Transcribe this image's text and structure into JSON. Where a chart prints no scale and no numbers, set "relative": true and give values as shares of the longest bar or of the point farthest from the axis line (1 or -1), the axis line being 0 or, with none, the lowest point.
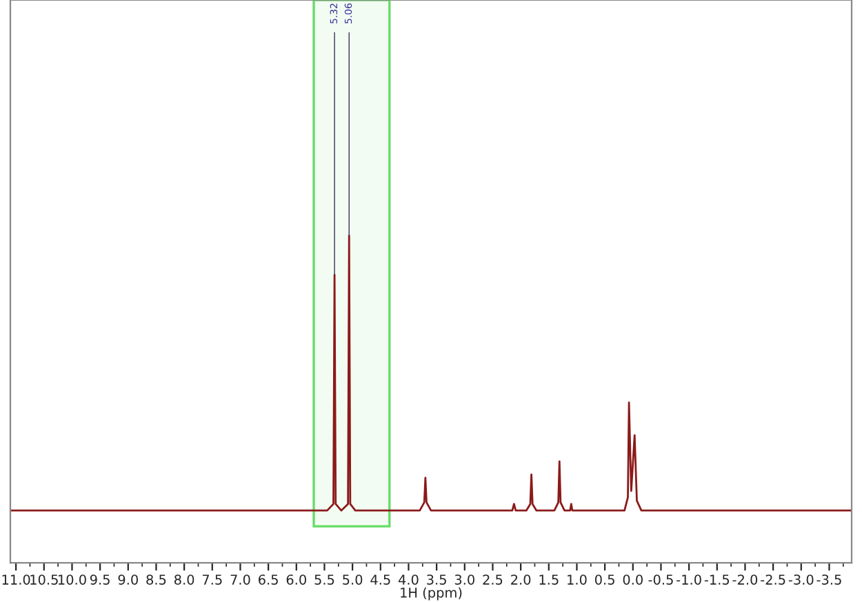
{
  "chart_data": {
    "type": "line",
    "relative": true,
    "xlabel": "1H (ppm)",
    "xlim": [
      11.1,
      -3.9
    ],
    "xticks": [
      {
        "value": 11,
        "label": "11.0"
      },
      10.5,
      {
        "value": 10,
        "label": "10.0"
      },
      9.5,
      {
        "value": 9,
        "label": "9.0"
      },
      8.5,
      {
        "value": 8,
        "label": "8.0"
      },
      7.5,
      {
        "value": 7,
        "label": "7.0"
      },
      6.5,
      {
        "value": 6,
        "label": "6.0"
      },
      5.5,
      {
        "value": 5,
        "label": "5.0"
      },
      4.5,
      {
        "value": 4,
        "label": "4.0"
      },
      3.5,
      {
        "value": 3,
        "label": "3.0"
      },
      2.5,
      {
        "value": 2,
        "label": "2.0"
      },
      1.5,
      {
        "value": 1,
        "label": "1.0"
      },
      0.5,
      {
        "value": 0,
        "label": "0.0"
      },
      -0.5,
      {
        "value": -1,
        "label": "-1.0"
      },
      -1.5,
      {
        "value": -2,
        "label": "-2.0"
      },
      -2.5,
      {
        "value": -3,
        "label": "-3.0"
      },
      -3.5
    ],
    "tick_labels": "x",
    "grid": false,
    "legend": false,
    "marker": "none",
    "line_style": "solid",
    "annotations": [
      {
        "text": "5.32",
        "x": 5.32,
        "y": 0.88
      },
      {
        "text": "5.06",
        "x": 5.06,
        "y": 1.0
      }
    ],
    "bands": [
      {
        "axis": "x",
        "from": 5.69,
        "to": 4.34,
        "label": null,
        "color": "#66dd66"
      }
    ],
    "series": [
      {
        "color": "#8b1a1a",
        "x": [
          11.1,
          5.45,
          5.34,
          5.32,
          5.3,
          5.2,
          5.08,
          5.06,
          5.04,
          4.95,
          3.8,
          3.72,
          3.7,
          3.68,
          3.6,
          2.15,
          2.12,
          2.09,
          1.9,
          1.83,
          1.81,
          1.79,
          1.72,
          1.4,
          1.33,
          1.31,
          1.29,
          1.22,
          1.12,
          1.1,
          1.08,
          0.15,
          0.09,
          0.07,
          0.03,
          -0.03,
          -0.07,
          -0.15,
          -3.9
        ],
        "values": [
          0.16,
          0.16,
          0.18,
          0.88,
          0.18,
          0.16,
          0.18,
          1.0,
          0.18,
          0.16,
          0.16,
          0.185,
          0.26,
          0.185,
          0.16,
          0.16,
          0.18,
          0.16,
          0.16,
          0.18,
          0.27,
          0.18,
          0.16,
          0.16,
          0.185,
          0.31,
          0.185,
          0.16,
          0.16,
          0.18,
          0.16,
          0.16,
          0.2,
          0.49,
          0.22,
          0.39,
          0.19,
          0.16,
          0.16
        ]
      }
    ]
  }
}
